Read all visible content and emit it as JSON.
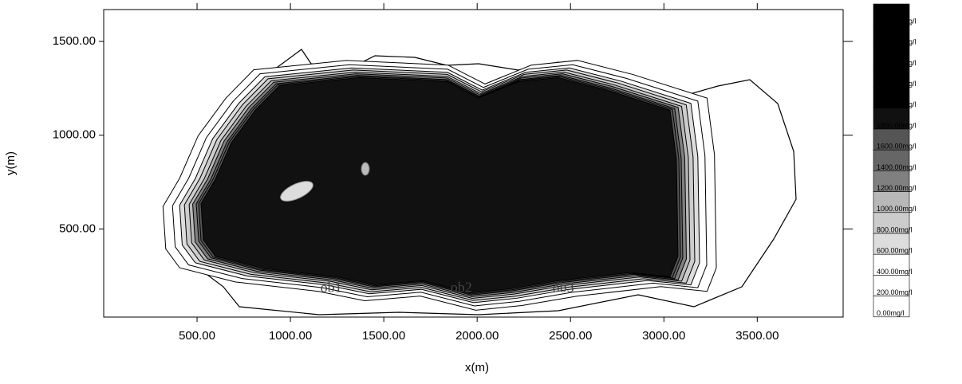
{
  "chart_data": {
    "type": "contour",
    "xlabel": "x(m)",
    "ylabel": "y(m)",
    "xlim": [
      0,
      3960
    ],
    "ylim": [
      30,
      1670
    ],
    "xticks": [
      {
        "value": 500,
        "label": "500.00"
      },
      {
        "value": 1000,
        "label": "1000.00"
      },
      {
        "value": 1500,
        "label": "1500.00"
      },
      {
        "value": 2000,
        "label": "2000.00"
      },
      {
        "value": 2500,
        "label": "2500.00"
      },
      {
        "value": 3000,
        "label": "3000.00"
      },
      {
        "value": 3500,
        "label": "3500.00"
      }
    ],
    "yticks": [
      {
        "value": 500,
        "label": "500.00"
      },
      {
        "value": 1000,
        "label": "1000.00"
      },
      {
        "value": 1500,
        "label": "1500.00"
      }
    ],
    "levels": [
      {
        "value": 2800,
        "label": "2800.00mg/l"
      },
      {
        "value": 2600,
        "label": "2600.00mg/l"
      },
      {
        "value": 2400,
        "label": "2400.00mg/l"
      },
      {
        "value": 2200,
        "label": "2200.00mg/l"
      },
      {
        "value": 2000,
        "label": "2000.00mg/l"
      },
      {
        "value": 1800,
        "label": "1800.00mg/l"
      },
      {
        "value": 1600,
        "label": "1600.00mg/l"
      },
      {
        "value": 1400,
        "label": "1400.00mg/l"
      },
      {
        "value": 1200,
        "label": "1200.00mg/l"
      },
      {
        "value": 1000,
        "label": "1000.00mg/l"
      },
      {
        "value": 800,
        "label": "800.00mg/l"
      },
      {
        "value": 600,
        "label": "600.00mg/l"
      },
      {
        "value": 400,
        "label": "400.00mg/l"
      },
      {
        "value": 200,
        "label": "200.00mg/l"
      },
      {
        "value": 0,
        "label": "0.00mg/l"
      }
    ],
    "level_colors": [
      "#000000",
      "#000000",
      "#000000",
      "#000000",
      "#000000",
      "#111111",
      "#555555",
      "#666666",
      "#808080",
      "#b8b8b8",
      "#cccccc",
      "#dddddd",
      "#ffffff",
      "#ffffff",
      "#ffffff"
    ],
    "annotations": [
      {
        "text": "ob1",
        "x": 1218,
        "y": 182
      },
      {
        "text": "ob2",
        "x": 1915,
        "y": 182
      },
      {
        "text": "ob3",
        "x": 2461,
        "y": 182
      }
    ]
  }
}
